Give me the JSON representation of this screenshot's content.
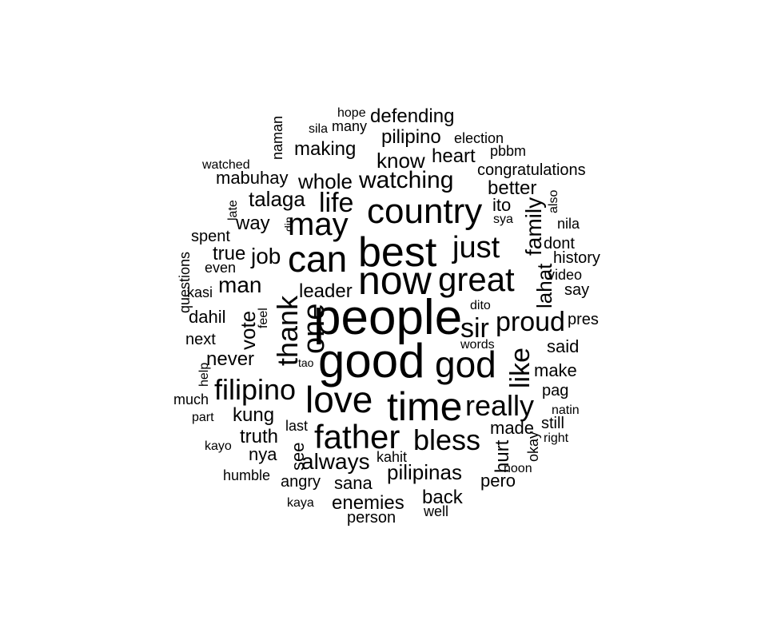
{
  "word_cloud": {
    "text_color": "#000000",
    "background": "#ffffff",
    "words": [
      "people",
      "good",
      "now",
      "best",
      "time",
      "love",
      "god",
      "father",
      "country",
      "can",
      "great",
      "thank",
      "one",
      "may",
      "bless",
      "really",
      "just",
      "filipino",
      "like",
      "proud",
      "sir",
      "family",
      "life",
      "watching",
      "whole",
      "lahat",
      "know",
      "heart",
      "talaga",
      "mabuhay",
      "making",
      "defending",
      "pilipino",
      "better",
      "ito",
      "congratulations",
      "election",
      "pbbm",
      "many",
      "sila",
      "hope",
      "naman",
      "watched",
      "late",
      "din",
      "way",
      "spent",
      "true",
      "job",
      "even",
      "questions",
      "kasi",
      "man",
      "leader",
      "dahil",
      "vote",
      "feel",
      "next",
      "help",
      "never",
      "tao",
      "much",
      "part",
      "kung",
      "truth",
      "last",
      "see",
      "nya",
      "always",
      "kahit",
      "pilipinas",
      "angry",
      "sana",
      "enemies",
      "back",
      "kaya",
      "person",
      "well",
      "humble",
      "kayo",
      "made",
      "hurt",
      "okay",
      "noon",
      "pero",
      "still",
      "right",
      "natin",
      "pag",
      "make",
      "said",
      "pres",
      "words",
      "dito",
      "say",
      "video",
      "history",
      "dont",
      "nila",
      "sya",
      "also"
    ]
  }
}
